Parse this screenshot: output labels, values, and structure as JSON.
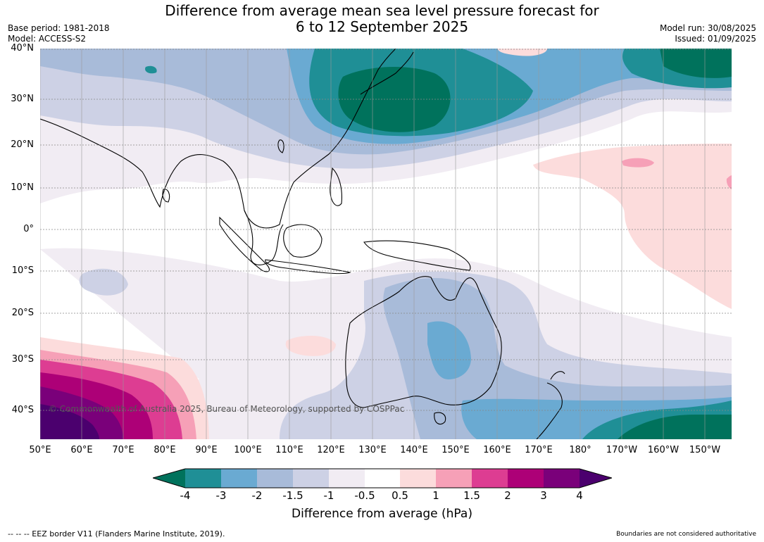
{
  "title": {
    "line1": "Difference from average mean sea level pressure forecast for",
    "line2": "6 to 12 September 2025"
  },
  "meta_left": {
    "base_period": "Base period: 1981-2018",
    "model": "Model: ACCESS-S2"
  },
  "meta_right": {
    "model_run": "Model run: 30/08/2025",
    "issued": "Issued: 01/09/2025"
  },
  "latitude_ticks": [
    "40°N",
    "30°N",
    "20°N",
    "10°N",
    "0°",
    "10°S",
    "20°S",
    "30°S",
    "40°S"
  ],
  "longitude_ticks": [
    "50°E",
    "60°E",
    "70°E",
    "80°E",
    "90°E",
    "100°E",
    "110°E",
    "120°E",
    "130°E",
    "140°E",
    "150°E",
    "160°E",
    "170°E",
    "180°",
    "170°W",
    "160°W",
    "150°W"
  ],
  "copyright": "© Commonwealth of Australia 2025, Bureau of Meteorology, supported by COSPPac",
  "colorbar": {
    "ticks": [
      "-4",
      "-3",
      "-2",
      "-1.5",
      "-1",
      "-0.5",
      "0.5",
      "1",
      "1.5",
      "2",
      "3",
      "4"
    ],
    "colors": [
      "#1f8f96",
      "#6aaad2",
      "#a8bbd9",
      "#cdd1e5",
      "#f1ecf3",
      "#ffffff",
      "#fcdcdc",
      "#f6a0b7",
      "#dd3d92",
      "#ad0077",
      "#7a007a"
    ],
    "under_color": "#00725c",
    "over_color": "#4b006e",
    "label": "Difference from average (hPa)"
  },
  "footer": {
    "left": "--  --  -- EEZ border V11 (Flanders Marine Institute, 2019).",
    "right": "Boundaries are not considered authoritative"
  }
}
